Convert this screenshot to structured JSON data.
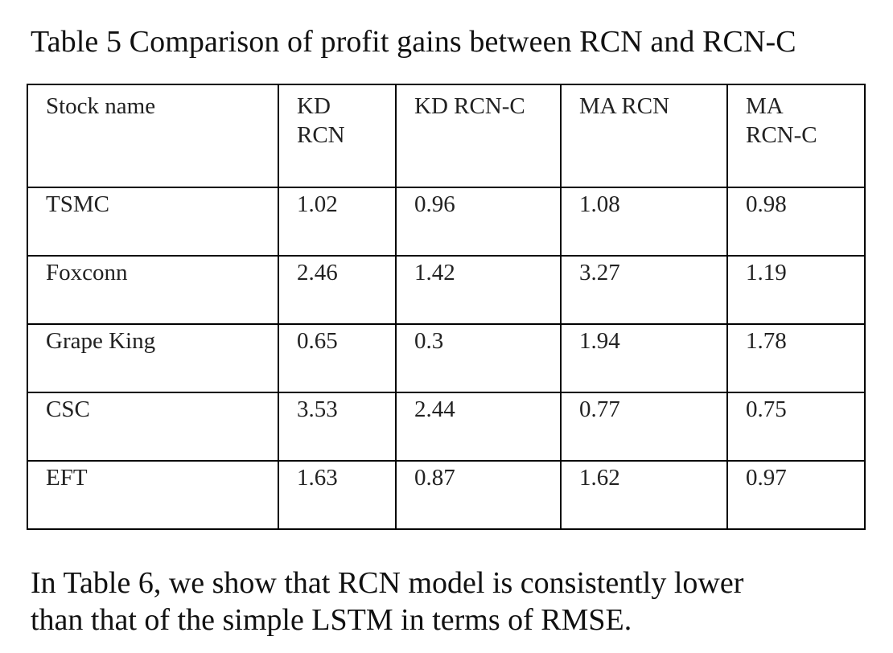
{
  "caption": "Table 5 Comparison of profit gains between RCN and RCN-C",
  "table": {
    "headers": [
      [
        "Stock name"
      ],
      [
        "KD",
        "RCN"
      ],
      [
        "KD RCN-C"
      ],
      [
        "MA RCN"
      ],
      [
        "MA",
        "RCN-C"
      ]
    ],
    "rows": [
      {
        "name": "TSMC",
        "values": [
          "1.02",
          "0.96",
          "1.08",
          "0.98"
        ]
      },
      {
        "name": "Foxconn",
        "values": [
          "2.46",
          "1.42",
          "3.27",
          "1.19"
        ]
      },
      {
        "name": "Grape King",
        "values": [
          "0.65",
          "0.3",
          "1.94",
          "1.78"
        ]
      },
      {
        "name": "CSC",
        "values": [
          "3.53",
          "2.44",
          "0.77",
          "0.75"
        ]
      },
      {
        "name": "EFT",
        "values": [
          "1.63",
          "0.87",
          "1.62",
          "0.97"
        ]
      }
    ]
  },
  "paragraph": {
    "lines": [
      "In Table 6, we show that RCN model is consistently lower",
      "than that of the simple LSTM in terms of RMSE."
    ]
  }
}
